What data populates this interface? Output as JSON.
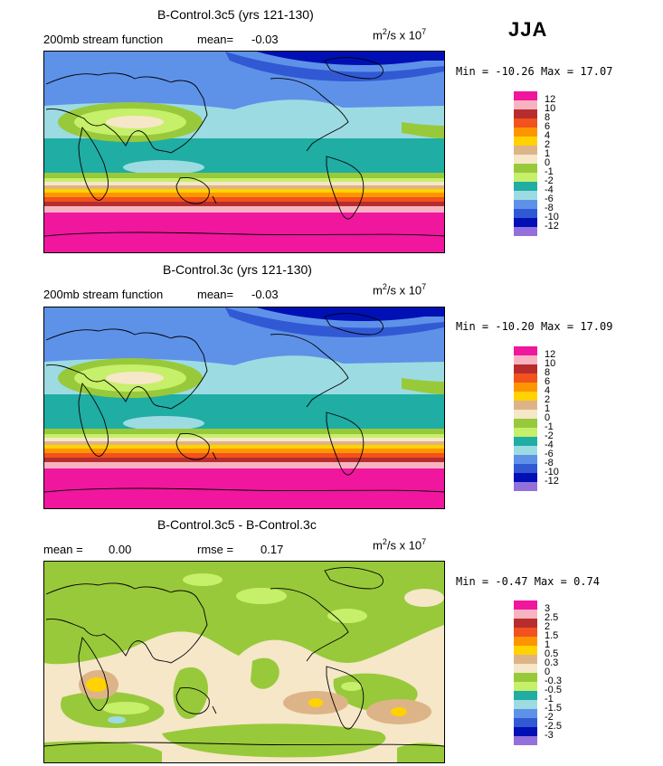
{
  "season": "JJA",
  "colors": [
    "#f0169e",
    "#f7b4c0",
    "#b72d2d",
    "#f2521d",
    "#fd9500",
    "#ffd200",
    "#ddb488",
    "#f5e7c8",
    "#98c93a",
    "#c6ef6a",
    "#1fada4",
    "#9ddbe2",
    "#5e92e8",
    "#3259d4",
    "#0010b4",
    "#9370db"
  ],
  "panels": [
    {
      "title": "B-Control.3c5 (yrs 121-130)",
      "left_label": "200mb stream function",
      "mean_label": "mean=",
      "mean_value": "-0.03",
      "units_main": "m",
      "units_sup1": "2",
      "units_mid": "/s x 10",
      "units_sup2": "7",
      "min_label": "Min =",
      "min_value": "-10.26",
      "max_label": "Max =",
      "max_value": "17.07",
      "legend_labels": [
        "12",
        "10",
        "8",
        "6",
        "4",
        "2",
        "1",
        "0",
        "-1",
        "-2",
        "-4",
        "-6",
        "-8",
        "-10",
        "-12"
      ]
    },
    {
      "title": "B-Control.3c (yrs 121-130)",
      "left_label": "200mb stream function",
      "mean_label": "mean=",
      "mean_value": "-0.03",
      "units_main": "m",
      "units_sup1": "2",
      "units_mid": "/s x 10",
      "units_sup2": "7",
      "min_label": "Min =",
      "min_value": "-10.20",
      "max_label": "Max =",
      "max_value": "17.09",
      "legend_labels": [
        "12",
        "10",
        "8",
        "6",
        "4",
        "2",
        "1",
        "0",
        "-1",
        "-2",
        "-4",
        "-6",
        "-8",
        "-10",
        "-12"
      ]
    },
    {
      "title": "B-Control.3c5 - B-Control.3c",
      "mean_label": "mean =",
      "mean_value": "0.00",
      "rmse_label": "rmse =",
      "rmse_value": "0.17",
      "units_main": "m",
      "units_sup1": "2",
      "units_mid": "/s x 10",
      "units_sup2": "7",
      "min_label": "Min =",
      "min_value": "-0.47",
      "max_label": "Max =",
      "max_value": "0.74",
      "legend_labels": [
        "3",
        "2.5",
        "2",
        "1.5",
        "1",
        "0.5",
        "0.3",
        "0",
        "-0.3",
        "-0.5",
        "-1",
        "-1.5",
        "-2",
        "-2.5",
        "-3"
      ]
    }
  ]
}
